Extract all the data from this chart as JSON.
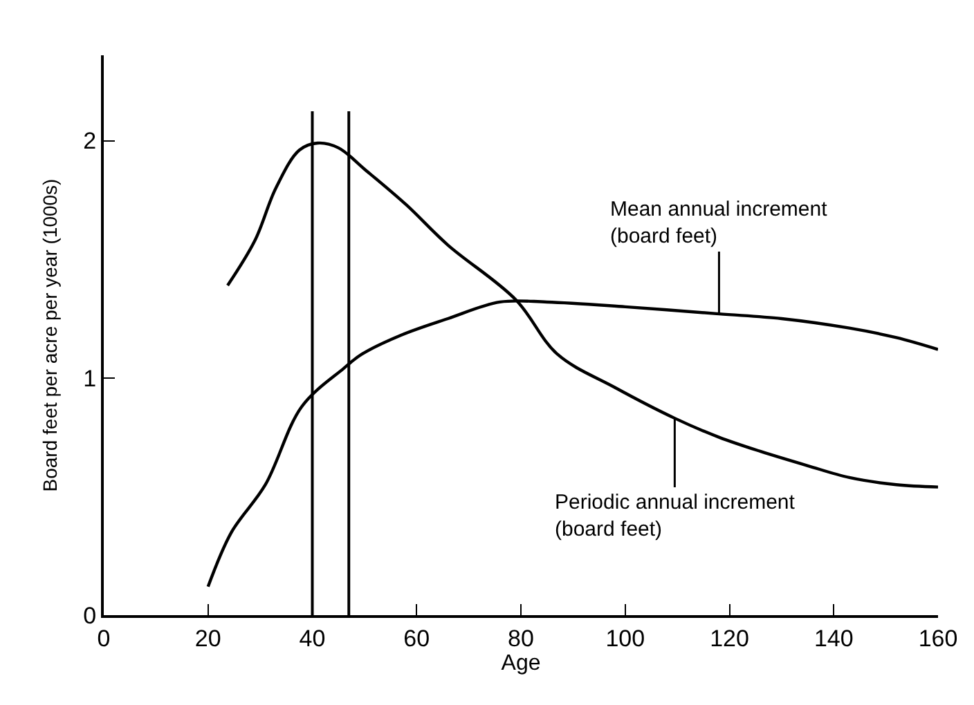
{
  "chart_data": {
    "type": "line",
    "xlabel": "Age",
    "ylabel": "Board feet per acre per year (1000s)",
    "xlim": [
      0,
      160
    ],
    "xticks": [
      0,
      20,
      40,
      60,
      80,
      100,
      120,
      140,
      160
    ],
    "ylim": [
      0,
      2.36
    ],
    "yticks": [
      0,
      1,
      2
    ],
    "marker": "none",
    "line_style": "solid",
    "series": [
      {
        "color": "#000000",
        "x": [
          23.75,
          29,
          33,
          37.5,
          41,
          45,
          50,
          58,
          66,
          79,
          87,
          98,
          109.5,
          118,
          126,
          135,
          143,
          152,
          160
        ],
        "values": [
          1.39,
          1.58,
          1.8,
          1.96,
          1.99,
          1.97,
          1.88,
          1.73,
          1.56,
          1.33,
          1.1,
          0.96,
          0.83,
          0.75,
          0.69,
          0.63,
          0.58,
          0.55,
          0.54
        ]
      },
      {
        "color": "#000000",
        "x": [
          20,
          24.5,
          31,
          38,
          46,
          49.5,
          57,
          66,
          76,
          85,
          100,
          118,
          130,
          143,
          152,
          160
        ],
        "values": [
          0.12,
          0.35,
          0.55,
          0.88,
          1.04,
          1.1,
          1.18,
          1.25,
          1.32,
          1.32,
          1.3,
          1.27,
          1.25,
          1.21,
          1.17,
          1.12
        ]
      }
    ],
    "ref_lines": [
      {
        "axis": "x",
        "value": 40,
        "color": "#000000"
      },
      {
        "axis": "x",
        "value": 47,
        "color": "#000000"
      }
    ],
    "annotations": [
      {
        "text": "Mean annual increment\n(board feet)",
        "x": 118,
        "y": 1.27
      },
      {
        "text": "Periodic annual increment\n(board feet)",
        "x": 109.5,
        "y": 0.83
      }
    ]
  }
}
